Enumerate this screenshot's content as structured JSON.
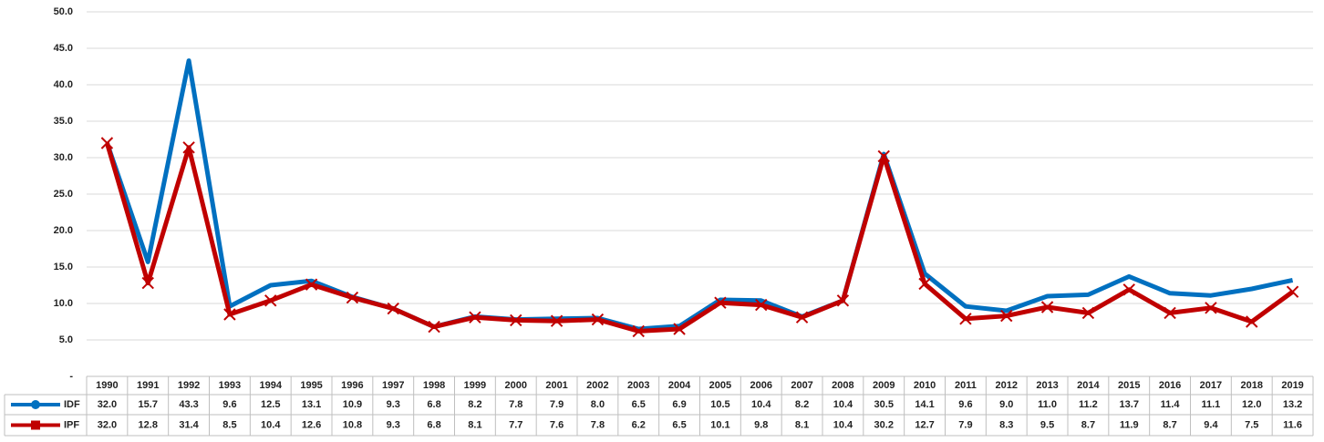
{
  "chart_data": {
    "type": "line",
    "categories": [
      "1990",
      "1991",
      "1992",
      "1993",
      "1994",
      "1995",
      "1996",
      "1997",
      "1998",
      "1999",
      "2000",
      "2001",
      "2002",
      "2003",
      "2004",
      "2005",
      "2006",
      "2007",
      "2008",
      "2009",
      "2010",
      "2011",
      "2012",
      "2013",
      "2014",
      "2015",
      "2016",
      "2017",
      "2018",
      "2019"
    ],
    "series": [
      {
        "name": "IDF",
        "color": "#0070c0",
        "marker": "circle",
        "values": [
          32.0,
          15.7,
          43.3,
          9.6,
          12.5,
          13.1,
          10.9,
          9.3,
          6.8,
          8.2,
          7.8,
          7.9,
          8.0,
          6.5,
          6.9,
          10.5,
          10.4,
          8.2,
          10.4,
          30.5,
          14.1,
          9.6,
          9.0,
          11.0,
          11.2,
          13.7,
          11.4,
          11.1,
          12.0,
          13.2
        ],
        "value_labels": [
          "32.0",
          "15.7",
          "43.3",
          "9.6",
          "12.5",
          "13.1",
          "10.9",
          "9.3",
          "6.8",
          "8.2",
          "7.8",
          "7.9",
          "8.0",
          "6.5",
          "6.9",
          "10.5",
          "10.4",
          "8.2",
          "10.4",
          "30.5",
          "14.1",
          "9.6",
          "9.0",
          "11.0",
          "11.2",
          "13.7",
          "11.4",
          "11.1",
          "12.0",
          "13.2"
        ]
      },
      {
        "name": "IPF",
        "color": "#c00000",
        "marker": "square",
        "values": [
          32.0,
          12.8,
          31.4,
          8.5,
          10.4,
          12.6,
          10.8,
          9.3,
          6.8,
          8.1,
          7.7,
          7.6,
          7.8,
          6.2,
          6.5,
          10.1,
          9.8,
          8.1,
          10.4,
          30.2,
          12.7,
          7.9,
          8.3,
          9.5,
          8.7,
          11.9,
          8.7,
          9.4,
          7.5,
          11.6
        ],
        "value_labels": [
          "32.0",
          "12.8",
          "31.4",
          "8.5",
          "10.4",
          "12.6",
          "10.8",
          "9.3",
          "6.8",
          "8.1",
          "7.7",
          "7.6",
          "7.8",
          "6.2",
          "6.5",
          "10.1",
          "9.8",
          "8.1",
          "10.4",
          "30.2",
          "12.7",
          "7.9",
          "8.3",
          "9.5",
          "8.7",
          "11.9",
          "8.7",
          "9.4",
          "7.5",
          "11.6"
        ]
      }
    ],
    "ylim": [
      0,
      50
    ],
    "yticks": [
      {
        "value": 0,
        "label": "-"
      },
      {
        "value": 5,
        "label": "5.0"
      },
      {
        "value": 10,
        "label": "10.0"
      },
      {
        "value": 15,
        "label": "15.0"
      },
      {
        "value": 20,
        "label": "20.0"
      },
      {
        "value": 25,
        "label": "25.0"
      },
      {
        "value": 30,
        "label": "30.0"
      },
      {
        "value": 35,
        "label": "35.0"
      },
      {
        "value": 40,
        "label": "40.0"
      },
      {
        "value": 45,
        "label": "45.0"
      },
      {
        "value": 50,
        "label": "50.0"
      }
    ],
    "grid": true,
    "data_table": true
  }
}
